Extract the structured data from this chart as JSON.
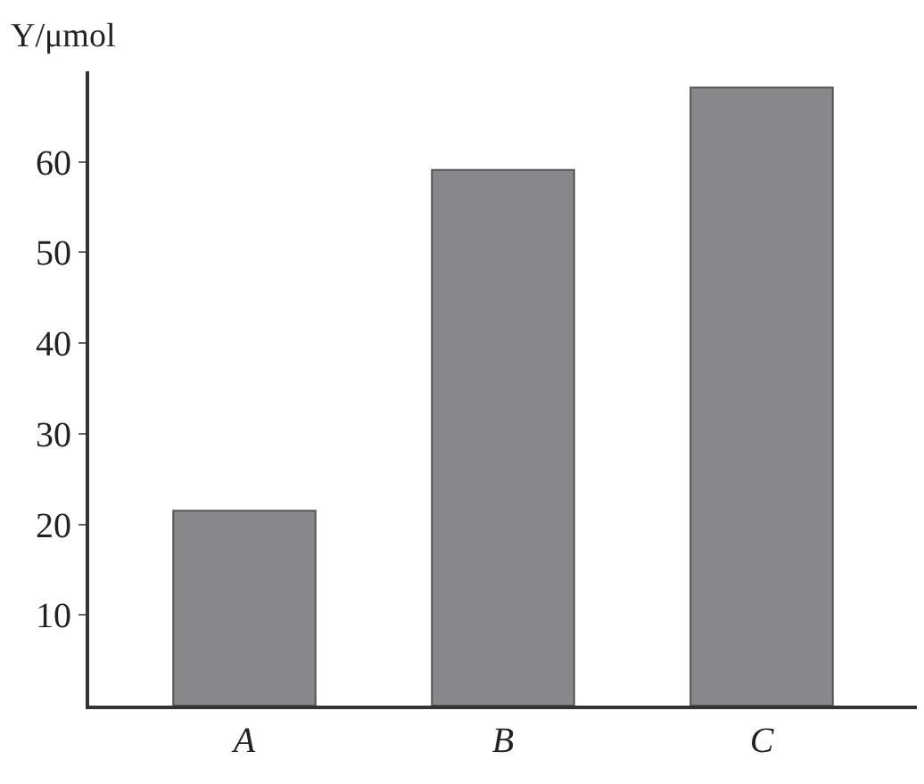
{
  "chart_data": {
    "type": "bar",
    "ylabel": "Y/μmol",
    "categories": [
      "A",
      "B",
      "C"
    ],
    "values": [
      21.5,
      59.1,
      68.2
    ],
    "color": "#87888c",
    "ylim": [
      0,
      70
    ],
    "yticks": [
      10,
      20,
      30,
      40,
      50,
      60
    ],
    "grid": false,
    "legend": false
  }
}
